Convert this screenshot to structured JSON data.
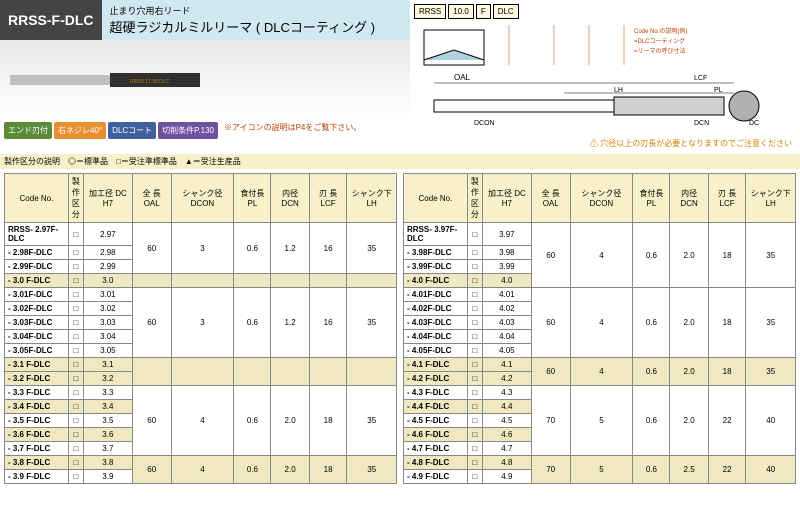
{
  "header": {
    "code": "RRSS-F-DLC",
    "subtitle": "止まり穴用右リード",
    "title": "超硬ラジカルミルリーマ",
    "suffix": "( DLCコーティング )"
  },
  "badges": [
    {
      "label": "エンド刃付",
      "cls": "badge-green"
    },
    {
      "label": "右ネジレ40°",
      "cls": "badge-orange"
    },
    {
      "label": "DLCコート",
      "cls": "badge-blue"
    },
    {
      "label": "切削条件P.130",
      "cls": "badge-purple"
    }
  ],
  "badge_note": "※アイコンの説明はP4をご覧下さい。",
  "legend": [
    "RRSS",
    "10.0",
    "F",
    "DLC"
  ],
  "legend_notes": [
    "Code No.の説明(例)",
    "=DLCコーティングリーマの意",
    "=リーマの呼び寸法",
    "=ラジカルミルリーマシリーズ",
    "RRSS:ストレートシャンク止まり穴用右リードリーマ"
  ],
  "dim_labels": {
    "oal": "OAL",
    "lh": "LH",
    "lcf": "LCF",
    "pl": "PL",
    "dcon": "DCON",
    "dcn": "DCN",
    "dc": "DC"
  },
  "note_bar": "製作区分の説明　◎＝標準品　□＝受注準標準品　▲＝受注生産品",
  "warning": "⚠ 穴径以上の刃長が必要となりますのでご注意ください",
  "headers": [
    "Code No.",
    "製作区分",
    "加工径 DC H7",
    "全 長 OAL",
    "シャンク径 DCON",
    "食付長 PL",
    "内径 DCN",
    "刃 長 LCF",
    "シャンク下 LH"
  ],
  "table1": [
    {
      "code": "RRSS- 2.97F-DLC",
      "dc": "2.97",
      "g": 0,
      "span": true,
      "oal": "60",
      "dcon": "3",
      "pl": "0.6",
      "dcn": "1.2",
      "lcf": "16",
      "lh": "35",
      "rs": 3
    },
    {
      "code": "- 2.98F-DLC",
      "dc": "2.98",
      "g": 0
    },
    {
      "code": "- 2.99F-DLC",
      "dc": "2.99",
      "g": 0
    },
    {
      "code": "- 3.0 F-DLC",
      "dc": "3.0",
      "g": 1,
      "hl": true,
      "span": true,
      "oal": "",
      "dcon": "",
      "pl": "",
      "dcn": "",
      "lcf": "",
      "lh": "",
      "rs": 1
    },
    {
      "code": "- 3.01F-DLC",
      "dc": "3.01",
      "g": 2,
      "span": true,
      "oal": "60",
      "dcon": "3",
      "pl": "0.6",
      "dcn": "1.2",
      "lcf": "16",
      "lh": "35",
      "rs": 5
    },
    {
      "code": "- 3.02F-DLC",
      "dc": "3.02",
      "g": 2
    },
    {
      "code": "- 3.03F-DLC",
      "dc": "3.03",
      "g": 2
    },
    {
      "code": "- 3.04F-DLC",
      "dc": "3.04",
      "g": 2
    },
    {
      "code": "- 3.05F-DLC",
      "dc": "3.05",
      "g": 2
    },
    {
      "code": "- 3.1 F-DLC",
      "dc": "3.1",
      "g": 3,
      "hl": true,
      "span": true,
      "oal": "",
      "dcon": "",
      "pl": "",
      "dcn": "",
      "lcf": "",
      "lh": "",
      "rs": 2
    },
    {
      "code": "- 3.2 F-DLC",
      "dc": "3.2",
      "g": 3,
      "hl": true
    },
    {
      "code": "- 3.3 F-DLC",
      "dc": "3.3",
      "g": 4,
      "span": true,
      "oal": "60",
      "dcon": "4",
      "pl": "0.6",
      "dcn": "2.0",
      "lcf": "18",
      "lh": "35",
      "rs": 5
    },
    {
      "code": "- 3.4 F-DLC",
      "dc": "3.4",
      "g": 4,
      "hl": true
    },
    {
      "code": "- 3.5 F-DLC",
      "dc": "3.5",
      "g": 4
    },
    {
      "code": "- 3.6 F-DLC",
      "dc": "3.6",
      "g": 4,
      "hl": true
    },
    {
      "code": "- 3.7 F-DLC",
      "dc": "3.7",
      "g": 4
    },
    {
      "code": "- 3.8 F-DLC",
      "dc": "3.8",
      "g": 5,
      "hl": true,
      "span": true,
      "oal": "60",
      "dcon": "4",
      "pl": "0.6",
      "dcn": "2.0",
      "lcf": "18",
      "lh": "35",
      "rs": 2
    },
    {
      "code": "- 3.9 F-DLC",
      "dc": "3.9",
      "g": 5
    }
  ],
  "table2": [
    {
      "code": "RRSS- 3.97F-DLC",
      "dc": "3.97",
      "g": 0,
      "span": true,
      "oal": "60",
      "dcon": "4",
      "pl": "0.6",
      "dcn": "2.0",
      "lcf": "18",
      "lh": "35",
      "rs": 4
    },
    {
      "code": "- 3.98F-DLC",
      "dc": "3.98",
      "g": 0
    },
    {
      "code": "- 3.99F-DLC",
      "dc": "3.99",
      "g": 0
    },
    {
      "code": "- 4.0 F-DLC",
      "dc": "4.0",
      "g": 0,
      "hl": true
    },
    {
      "code": "- 4.01F-DLC",
      "dc": "4.01",
      "g": 1,
      "span": true,
      "oal": "60",
      "dcon": "4",
      "pl": "0.6",
      "dcn": "2.0",
      "lcf": "18",
      "lh": "35",
      "rs": 5
    },
    {
      "code": "- 4.02F-DLC",
      "dc": "4.02",
      "g": 1
    },
    {
      "code": "- 4.03F-DLC",
      "dc": "4.03",
      "g": 1
    },
    {
      "code": "- 4.04F-DLC",
      "dc": "4.04",
      "g": 1
    },
    {
      "code": "- 4.05F-DLC",
      "dc": "4.05",
      "g": 1
    },
    {
      "code": "- 4.1 F-DLC",
      "dc": "4.1",
      "g": 2,
      "hl": true,
      "span": true,
      "oal": "60",
      "dcon": "4",
      "pl": "0.6",
      "dcn": "2.0",
      "lcf": "18",
      "lh": "35",
      "rs": 2
    },
    {
      "code": "- 4.2 F-DLC",
      "dc": "4.2",
      "g": 2,
      "hl": true
    },
    {
      "code": "- 4.3 F-DLC",
      "dc": "4.3",
      "g": 3,
      "span": true,
      "oal": "70",
      "dcon": "5",
      "pl": "0.6",
      "dcn": "2.0",
      "lcf": "22",
      "lh": "40",
      "rs": 5
    },
    {
      "code": "- 4.4 F-DLC",
      "dc": "4.4",
      "g": 3,
      "hl": true
    },
    {
      "code": "- 4.5 F-DLC",
      "dc": "4.5",
      "g": 3
    },
    {
      "code": "- 4.6 F-DLC",
      "dc": "4.6",
      "g": 3,
      "hl": true
    },
    {
      "code": "- 4.7 F-DLC",
      "dc": "4.7",
      "g": 3
    },
    {
      "code": "- 4.8 F-DLC",
      "dc": "4.8",
      "g": 4,
      "hl": true,
      "span": true,
      "oal": "70",
      "dcon": "5",
      "pl": "0.6",
      "dcn": "2.5",
      "lcf": "22",
      "lh": "40",
      "rs": 2
    },
    {
      "code": "- 4.9 F-DLC",
      "dc": "4.9",
      "g": 4
    }
  ],
  "colors": {
    "header_bg": "#f8f0c8",
    "hl_bg": "#f0e8c0",
    "border": "#888888"
  }
}
